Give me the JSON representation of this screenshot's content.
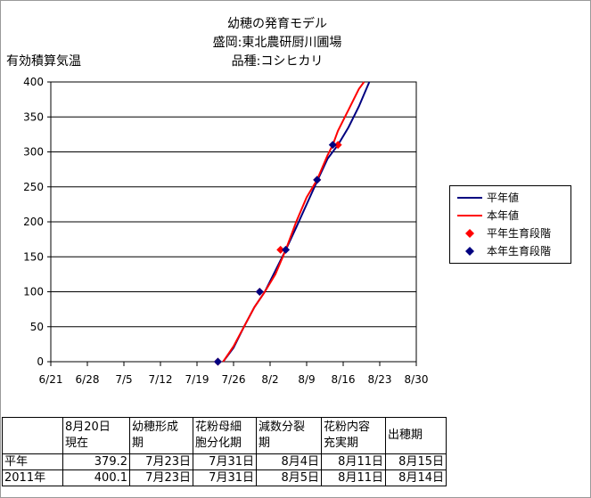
{
  "chart_data": {
    "type": "line",
    "title_lines": [
      "幼穂の発育モデル",
      "盛岡:東北農研厨川圃場",
      "品種:コシヒカリ"
    ],
    "ylabel": "有効積算気温",
    "xlabel": "",
    "x_ticks": [
      "6/21",
      "6/28",
      "7/5",
      "7/12",
      "7/19",
      "7/26",
      "8/2",
      "8/9",
      "8/16",
      "8/23",
      "8/30"
    ],
    "xlim": [
      "6/21",
      "8/30"
    ],
    "ylim": [
      0,
      400
    ],
    "y_ticks": [
      0,
      50,
      100,
      150,
      200,
      250,
      300,
      350,
      400
    ],
    "grid": "horizontal",
    "legend_position": "right",
    "series": [
      {
        "name": "平年値",
        "kind": "line",
        "color": "#000080",
        "x": [
          "7/24",
          "7/26",
          "7/28",
          "7/30",
          "8/1",
          "8/3",
          "8/5",
          "8/7",
          "8/9",
          "8/11",
          "8/13",
          "8/15",
          "8/17",
          "8/19",
          "8/21"
        ],
        "y": [
          0,
          20,
          50,
          78,
          100,
          130,
          160,
          192,
          225,
          258,
          290,
          310,
          335,
          365,
          400
        ]
      },
      {
        "name": "本年値",
        "kind": "line",
        "color": "#ff0000",
        "x": [
          "7/24",
          "7/26",
          "7/28",
          "7/30",
          "8/1",
          "8/3",
          "8/5",
          "8/7",
          "8/9",
          "8/11",
          "8/13",
          "8/14",
          "8/15",
          "8/17",
          "8/19",
          "8/20"
        ],
        "y": [
          0,
          22,
          50,
          78,
          100,
          125,
          160,
          200,
          235,
          260,
          295,
          310,
          330,
          360,
          390,
          400
        ]
      },
      {
        "name": "平年生育段階",
        "kind": "marker",
        "color": "#ff0000",
        "x": [
          "7/23",
          "7/31",
          "8/4",
          "8/11",
          "8/15"
        ],
        "y": [
          0,
          100,
          160,
          260,
          310
        ]
      },
      {
        "name": "本年生育段階",
        "kind": "marker",
        "color": "#000080",
        "x": [
          "7/23",
          "7/31",
          "8/5",
          "8/11",
          "8/14"
        ],
        "y": [
          0,
          100,
          160,
          260,
          310
        ]
      }
    ]
  },
  "table": {
    "headers": [
      "",
      "8月20日\n現在",
      "幼穂形成\n期",
      "花粉母細\n胞分化期",
      "減数分裂\n期",
      "花粉内容\n充実期",
      "出穂期"
    ],
    "rows": [
      [
        "平年",
        "379.2",
        "7月23日",
        "7月31日",
        "8月4日",
        "8月11日",
        "8月15日"
      ],
      [
        "2011年",
        "400.1",
        "7月23日",
        "7月31日",
        "8月5日",
        "8月11日",
        "8月14日"
      ]
    ]
  }
}
